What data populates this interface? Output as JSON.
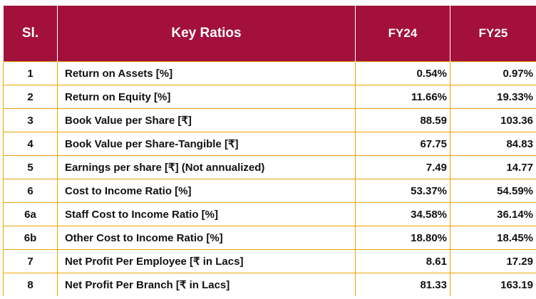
{
  "header": {
    "sl": "Sl.",
    "key": "Key Ratios",
    "fy24": "FY24",
    "fy25": "FY25"
  },
  "rows": [
    {
      "sl": "1",
      "name": "Return on Assets [%]",
      "fy24": "0.54%",
      "fy25": "0.97%"
    },
    {
      "sl": "2",
      "name": "Return on Equity [%]",
      "fy24": "11.66%",
      "fy25": "19.33%"
    },
    {
      "sl": "3",
      "name": "Book Value per Share [₹]",
      "fy24": "88.59",
      "fy25": "103.36"
    },
    {
      "sl": "4",
      "name": "Book Value per Share-Tangible [₹]",
      "fy24": "67.75",
      "fy25": "84.83"
    },
    {
      "sl": "5",
      "name": "Earnings per share [₹] (Not annualized)",
      "fy24": "7.49",
      "fy25": "14.77"
    },
    {
      "sl": "6",
      "name": "Cost to Income Ratio [%]",
      "fy24": "53.37%",
      "fy25": "54.59%"
    },
    {
      "sl": "6a",
      "name": "Staff Cost to Income Ratio [%]",
      "fy24": "34.58%",
      "fy25": "36.14%"
    },
    {
      "sl": "6b",
      "name": "Other Cost to Income Ratio [%]",
      "fy24": "18.80%",
      "fy25": "18.45%"
    },
    {
      "sl": "7",
      "name": "Net Profit Per Employee [₹ in Lacs]",
      "fy24": "8.61",
      "fy25": "17.29"
    },
    {
      "sl": "8",
      "name": "Net Profit Per Branch [₹ in Lacs]",
      "fy24": "81.33",
      "fy25": "163.19"
    }
  ],
  "colors": {
    "header_bg": "#a3103c",
    "header_text": "#ffffff",
    "border": "#e9a300"
  }
}
